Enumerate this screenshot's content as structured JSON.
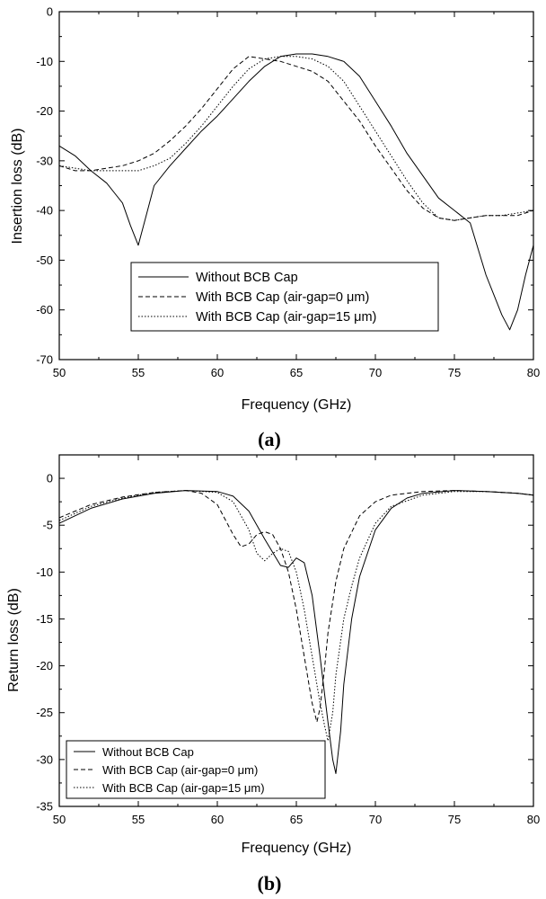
{
  "chart_data": [
    {
      "panel": "(a)",
      "type": "line",
      "xlabel": "Frequency (GHz)",
      "ylabel": "Insertion loss (dB)",
      "xlim": [
        50,
        80
      ],
      "ylim": [
        -70,
        0
      ],
      "xticks": [
        50,
        55,
        60,
        65,
        70,
        75,
        80
      ],
      "yticks": [
        0,
        -10,
        -20,
        -30,
        -40,
        -50,
        -60,
        -70
      ],
      "grid": false,
      "legend_position": "bottom-center",
      "series": [
        {
          "name": "Without BCB Cap",
          "style": "solid",
          "x": [
            50,
            51,
            52,
            53,
            54,
            54.5,
            55,
            55.5,
            56,
            57,
            58,
            59,
            60,
            61,
            62,
            63,
            64,
            65,
            66,
            67,
            68,
            69,
            70,
            71,
            72,
            73,
            74,
            75,
            76,
            77,
            77.5,
            78,
            78.5,
            79,
            79.5,
            80
          ],
          "y": [
            -27,
            -29,
            -32,
            -34.5,
            -38.5,
            -43,
            -47,
            -41,
            -35,
            -31,
            -27.5,
            -24,
            -21,
            -17.5,
            -14,
            -11,
            -9,
            -8.5,
            -8.5,
            -9,
            -10,
            -13,
            -18,
            -23,
            -28.5,
            -33,
            -37.5,
            -40,
            -42.5,
            -53,
            -57,
            -61,
            -64,
            -60,
            -53,
            -47
          ]
        },
        {
          "name": "With BCB Cap (air-gap=0 μm)",
          "style": "dashed",
          "x": [
            50,
            51,
            52,
            53,
            54,
            55,
            56,
            57,
            58,
            59,
            60,
            61,
            62,
            63,
            64,
            65,
            66,
            67,
            68,
            69,
            70,
            71,
            72,
            73,
            74,
            75,
            76,
            77,
            78,
            79,
            80
          ],
          "y": [
            -31,
            -32,
            -32,
            -31.5,
            -31,
            -30,
            -28.5,
            -26,
            -23,
            -19.5,
            -15.5,
            -11.5,
            -9,
            -9.5,
            -10,
            -11,
            -12,
            -14,
            -18,
            -22,
            -27,
            -31.5,
            -36,
            -39.5,
            -41.5,
            -42,
            -41.5,
            -41,
            -41,
            -41,
            -40
          ]
        },
        {
          "name": "With BCB Cap (air-gap=15 μm)",
          "style": "dotted",
          "x": [
            50,
            51,
            52,
            53,
            54,
            55,
            56,
            57,
            58,
            59,
            60,
            61,
            62,
            63,
            64,
            65,
            66,
            67,
            68,
            69,
            70,
            71,
            72,
            73,
            74,
            75,
            76,
            77,
            78,
            79,
            80
          ],
          "y": [
            -31,
            -31.5,
            -32,
            -32,
            -32,
            -32,
            -31,
            -29.5,
            -26.5,
            -23,
            -19,
            -15,
            -11.5,
            -9.5,
            -9,
            -9,
            -9.5,
            -11,
            -14,
            -19,
            -24,
            -29,
            -34,
            -38.5,
            -41.5,
            -42,
            -41.5,
            -41,
            -41,
            -40.5,
            -40
          ]
        }
      ]
    },
    {
      "panel": "(b)",
      "type": "line",
      "xlabel": "Frequency (GHz)",
      "ylabel": "Return loss (dB)",
      "xlim": [
        50,
        80
      ],
      "ylim": [
        -35,
        2.5
      ],
      "xticks": [
        50,
        55,
        60,
        65,
        70,
        75,
        80
      ],
      "yticks": [
        0,
        -5,
        -10,
        -15,
        -20,
        -25,
        -30,
        -35
      ],
      "grid": false,
      "legend_position": "bottom-left",
      "series": [
        {
          "name": "Without BCB Cap",
          "style": "solid",
          "x": [
            50,
            52,
            54,
            56,
            58,
            60,
            61,
            62,
            63,
            64,
            64.5,
            65,
            65.5,
            66,
            66.5,
            67,
            67.3,
            67.5,
            67.8,
            68,
            68.5,
            69,
            70,
            71,
            72,
            73,
            75,
            77,
            79,
            80
          ],
          "y": [
            -4.8,
            -3.2,
            -2.2,
            -1.6,
            -1.3,
            -1.4,
            -1.9,
            -3.5,
            -6.5,
            -9.3,
            -9.5,
            -8.5,
            -9,
            -12.5,
            -19,
            -26,
            -30,
            -31.5,
            -27,
            -22,
            -15,
            -10.5,
            -5.5,
            -3.2,
            -2.1,
            -1.6,
            -1.3,
            -1.4,
            -1.6,
            -1.8
          ]
        },
        {
          "name": "With BCB Cap (air-gap=0 μm)",
          "style": "dashed",
          "x": [
            50,
            52,
            54,
            56,
            58,
            59,
            60,
            61,
            61.5,
            62,
            62.5,
            63,
            63.5,
            64,
            64.5,
            65,
            65.5,
            66,
            66.3,
            66.5,
            66.8,
            67,
            67.5,
            68,
            69,
            70,
            71,
            73,
            75,
            77,
            79,
            80
          ],
          "y": [
            -4.2,
            -2.8,
            -2,
            -1.5,
            -1.3,
            -1.6,
            -2.8,
            -6,
            -7.3,
            -7,
            -6,
            -5.7,
            -6,
            -7.5,
            -10,
            -14,
            -19,
            -24,
            -26,
            -24.5,
            -20,
            -16.5,
            -11,
            -7.5,
            -4,
            -2.5,
            -1.8,
            -1.4,
            -1.3,
            -1.4,
            -1.6,
            -1.8
          ]
        },
        {
          "name": "With BCB Cap (air-gap=15 μm)",
          "style": "dotted",
          "x": [
            50,
            52,
            54,
            56,
            58,
            60,
            61,
            62,
            62.5,
            63,
            63.5,
            64,
            64.5,
            65,
            65.5,
            66,
            66.5,
            66.8,
            67,
            67.3,
            67.5,
            68,
            68.5,
            69,
            70,
            71,
            73,
            75,
            77,
            79,
            80
          ],
          "y": [
            -4.5,
            -3,
            -2.1,
            -1.5,
            -1.3,
            -1.5,
            -2.5,
            -5.5,
            -8,
            -8.8,
            -8,
            -7.5,
            -7.8,
            -10,
            -14,
            -19,
            -24,
            -26.5,
            -28,
            -25,
            -21,
            -15,
            -11.5,
            -8.5,
            -4.8,
            -3,
            -1.8,
            -1.4,
            -1.4,
            -1.6,
            -1.8
          ]
        }
      ]
    }
  ]
}
